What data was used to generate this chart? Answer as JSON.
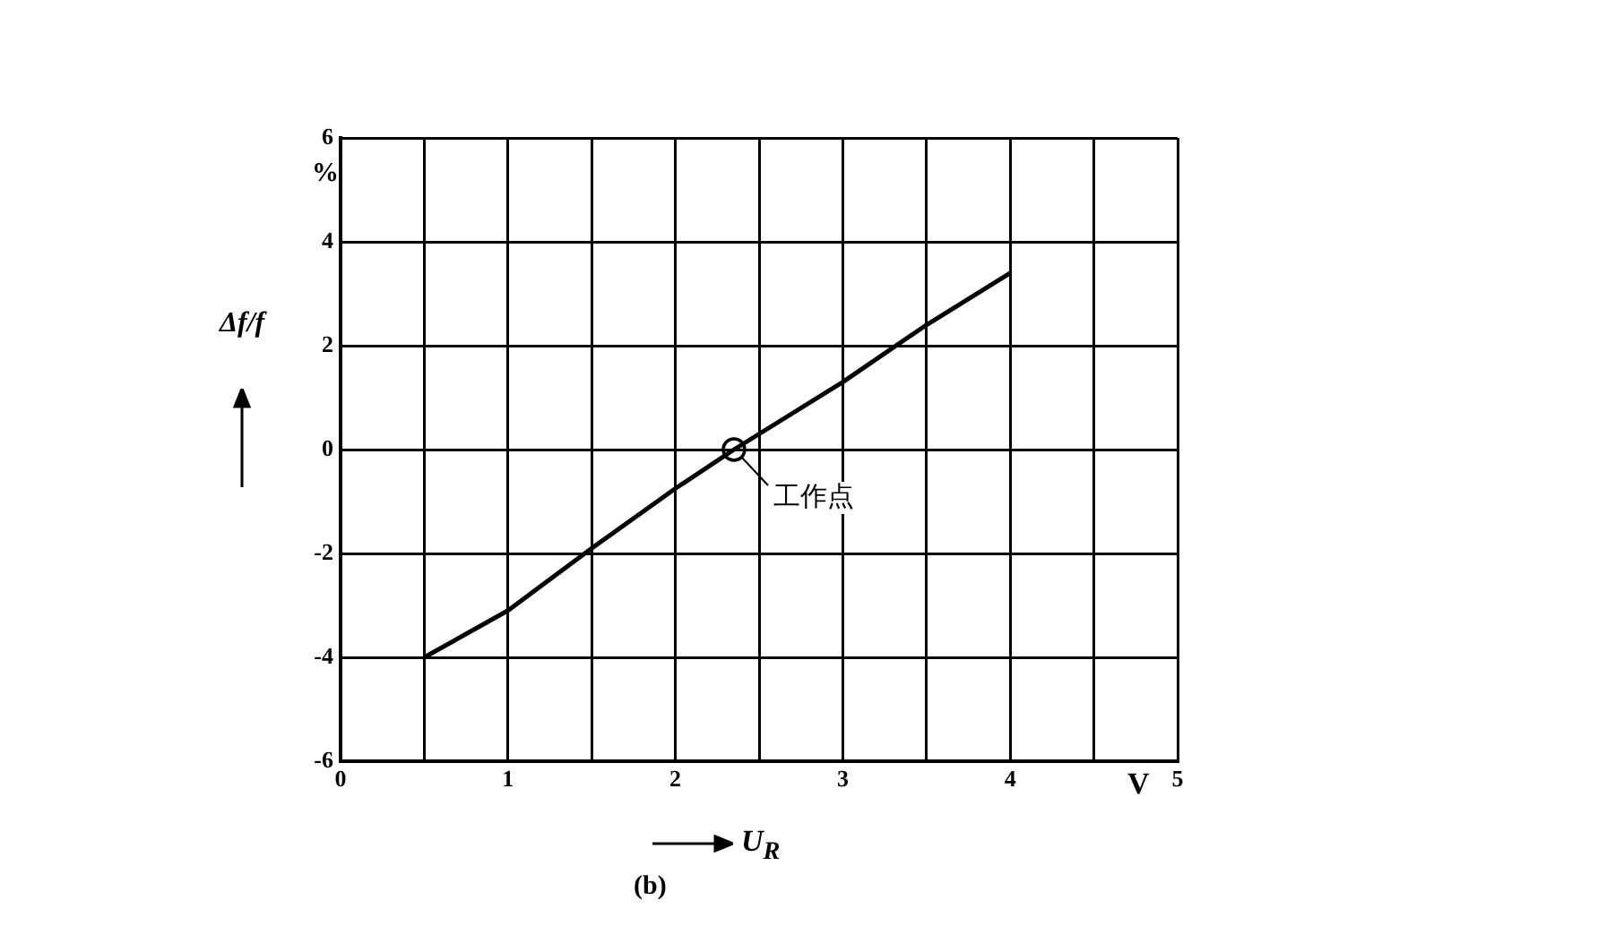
{
  "chart_data": {
    "type": "line",
    "xlabel": "U$_{R}$",
    "ylabel": "Δf/f",
    "xlim": [
      0,
      5
    ],
    "ylim": [
      -6,
      6
    ],
    "xticks": [
      0,
      {
        "value": 0.5,
        "label": null
      },
      1,
      {
        "value": 1.5,
        "label": null
      },
      2,
      {
        "value": 2.5,
        "label": null
      },
      3,
      {
        "value": 3.5,
        "label": null
      },
      4,
      {
        "value": 4.5,
        "label": null
      },
      5
    ],
    "yticks": [
      -6,
      -4,
      -2,
      0,
      2,
      4,
      6
    ],
    "grid": true,
    "series": [
      {
        "color": "#000000",
        "marker": "none",
        "x": [
          0.5,
          1,
          1.5,
          2,
          2.35,
          3,
          3.5,
          4
        ],
        "values": [
          -4,
          -3.1,
          -1.9,
          -0.75,
          0,
          1.3,
          2.4,
          3.4
        ]
      },
      {
        "type": "scatter",
        "color": "#000000",
        "marker": "circle",
        "x": [
          2.35
        ],
        "values": [
          0
        ]
      }
    ],
    "annotations": [
      {
        "text": "工作点",
        "x": 2.35,
        "y": 0
      },
      "%",
      "V",
      "(b)"
    ]
  }
}
